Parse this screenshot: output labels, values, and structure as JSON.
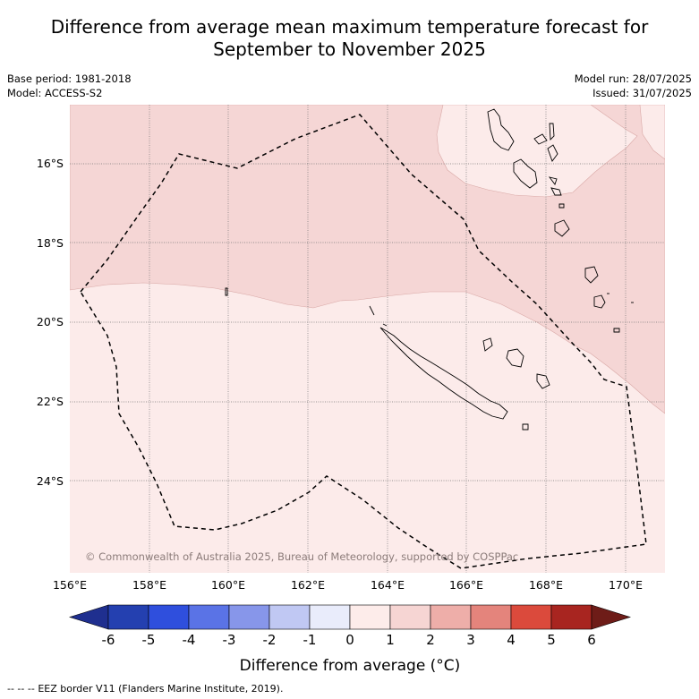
{
  "title": {
    "line1": "Difference from average mean maximum temperature forecast for",
    "line2": "September to November 2025"
  },
  "meta": {
    "base_period": "Base period: 1981-2018",
    "model": "Model: ACCESS-S2",
    "model_run": "Model run: 28/07/2025",
    "issued": "Issued: 31/07/2025"
  },
  "map": {
    "lon_labels": [
      "156°E",
      "158°E",
      "160°E",
      "162°E",
      "164°E",
      "166°E",
      "168°E",
      "170°E"
    ],
    "lat_labels": [
      "16°S",
      "18°S",
      "20°S",
      "22°S",
      "24°S"
    ],
    "copyright": "© Commonwealth of Australia 2025, Bureau of Meteorology, supported by COSPPac"
  },
  "colorbar": {
    "tick_labels": [
      "-6",
      "-5",
      "-4",
      "-3",
      "-2",
      "-1",
      "0",
      "1",
      "2",
      "3",
      "4",
      "5",
      "6"
    ],
    "colors": [
      "#1f2f8f",
      "#2440b0",
      "#2f4fdd",
      "#5a73e6",
      "#8796ea",
      "#c0c8f3",
      "#e9ecfb",
      "#fdecea",
      "#f6d5d3",
      "#eeaea9",
      "#e4847c",
      "#db4a3c",
      "#a82520",
      "#6e1c18"
    ],
    "label": "Difference from average (°C)"
  },
  "legend": {
    "eez_line_sample": "--  --  --",
    "eez_label": "EEZ border V11 (Flanders Marine Institute, 2019)."
  }
}
